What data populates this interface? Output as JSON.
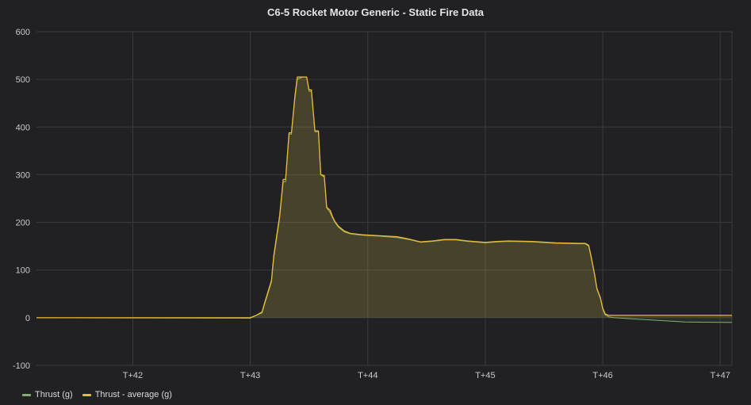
{
  "panel": {
    "title": "C6-5 Rocket Motor Generic - Static Fire Data"
  },
  "legend": [
    {
      "label": "Thrust (g)",
      "color": "#7eb26d"
    },
    {
      "label": "Thrust - average (g)",
      "color": "#eab839"
    }
  ],
  "chart_data": {
    "type": "area",
    "title": "C6-5 Rocket Motor Generic - Static Fire Data",
    "xlabel": "",
    "ylabel": "",
    "xlim": [
      41.18,
      47.1
    ],
    "ylim": [
      -100,
      600
    ],
    "x_ticks": [
      {
        "value": 42,
        "label": "T+42"
      },
      {
        "value": 43,
        "label": "T+43"
      },
      {
        "value": 44,
        "label": "T+44"
      },
      {
        "value": 45,
        "label": "T+45"
      },
      {
        "value": 46,
        "label": "T+46"
      },
      {
        "value": 47,
        "label": "T+47"
      }
    ],
    "y_ticks": [
      {
        "value": -100,
        "label": "-100"
      },
      {
        "value": 0,
        "label": "0"
      },
      {
        "value": 100,
        "label": "100"
      },
      {
        "value": 200,
        "label": "200"
      },
      {
        "value": 300,
        "label": "300"
      },
      {
        "value": 400,
        "label": "400"
      },
      {
        "value": 500,
        "label": "500"
      },
      {
        "value": 600,
        "label": "600"
      }
    ],
    "grid": true,
    "legend_position": "bottom-left",
    "series": [
      {
        "name": "Thrust (g)",
        "color": "#7eb26d",
        "x": [
          41.18,
          43.0,
          43.05,
          43.1,
          43.13,
          43.18,
          43.2,
          43.25,
          43.28,
          43.3,
          43.33,
          43.35,
          43.38,
          43.4,
          43.45,
          43.48,
          43.5,
          43.52,
          43.55,
          43.58,
          43.6,
          43.63,
          43.65,
          43.68,
          43.7,
          43.72,
          43.75,
          43.8,
          43.85,
          43.95,
          44.1,
          44.25,
          44.35,
          44.45,
          44.55,
          44.65,
          44.75,
          44.85,
          45.0,
          45.1,
          45.2,
          45.4,
          45.6,
          45.8,
          45.85,
          45.88,
          45.9,
          45.93,
          45.95,
          45.98,
          46.0,
          46.02,
          46.05,
          46.1,
          46.3,
          46.5,
          46.7,
          47.1
        ],
        "y": [
          0,
          -1,
          5,
          10,
          35,
          75,
          125,
          210,
          285,
          285,
          385,
          385,
          460,
          500,
          505,
          505,
          475,
          475,
          390,
          390,
          300,
          295,
          230,
          220,
          210,
          200,
          190,
          180,
          176,
          173,
          171,
          168,
          164,
          158,
          160,
          163,
          163,
          160,
          157,
          159,
          160,
          159,
          156,
          155,
          155,
          150,
          128,
          90,
          60,
          40,
          18,
          6,
          2,
          0,
          -3,
          -6,
          -9,
          -10
        ]
      },
      {
        "name": "Thrust - average (g)",
        "color": "#eab839",
        "x": [
          41.18,
          43.0,
          43.05,
          43.1,
          43.13,
          43.18,
          43.2,
          43.25,
          43.28,
          43.3,
          43.33,
          43.35,
          43.38,
          43.4,
          43.45,
          43.48,
          43.5,
          43.52,
          43.55,
          43.58,
          43.6,
          43.63,
          43.65,
          43.68,
          43.7,
          43.72,
          43.75,
          43.8,
          43.85,
          43.95,
          44.1,
          44.25,
          44.35,
          44.45,
          44.55,
          44.65,
          44.75,
          44.85,
          45.0,
          45.1,
          45.2,
          45.4,
          45.6,
          45.8,
          45.85,
          45.88,
          45.9,
          45.93,
          45.95,
          45.98,
          46.0,
          46.02,
          46.05,
          46.1,
          46.3,
          46.5,
          46.7,
          47.1
        ],
        "y": [
          0,
          0,
          5,
          12,
          38,
          78,
          130,
          215,
          290,
          290,
          388,
          388,
          465,
          505,
          505,
          505,
          478,
          478,
          392,
          392,
          300,
          298,
          232,
          225,
          212,
          202,
          192,
          182,
          177,
          174,
          172,
          170,
          165,
          159,
          161,
          164,
          164,
          161,
          158,
          160,
          161,
          160,
          157,
          156,
          156,
          152,
          130,
          92,
          62,
          42,
          20,
          8,
          5,
          5,
          5,
          5,
          5,
          5
        ]
      }
    ]
  }
}
